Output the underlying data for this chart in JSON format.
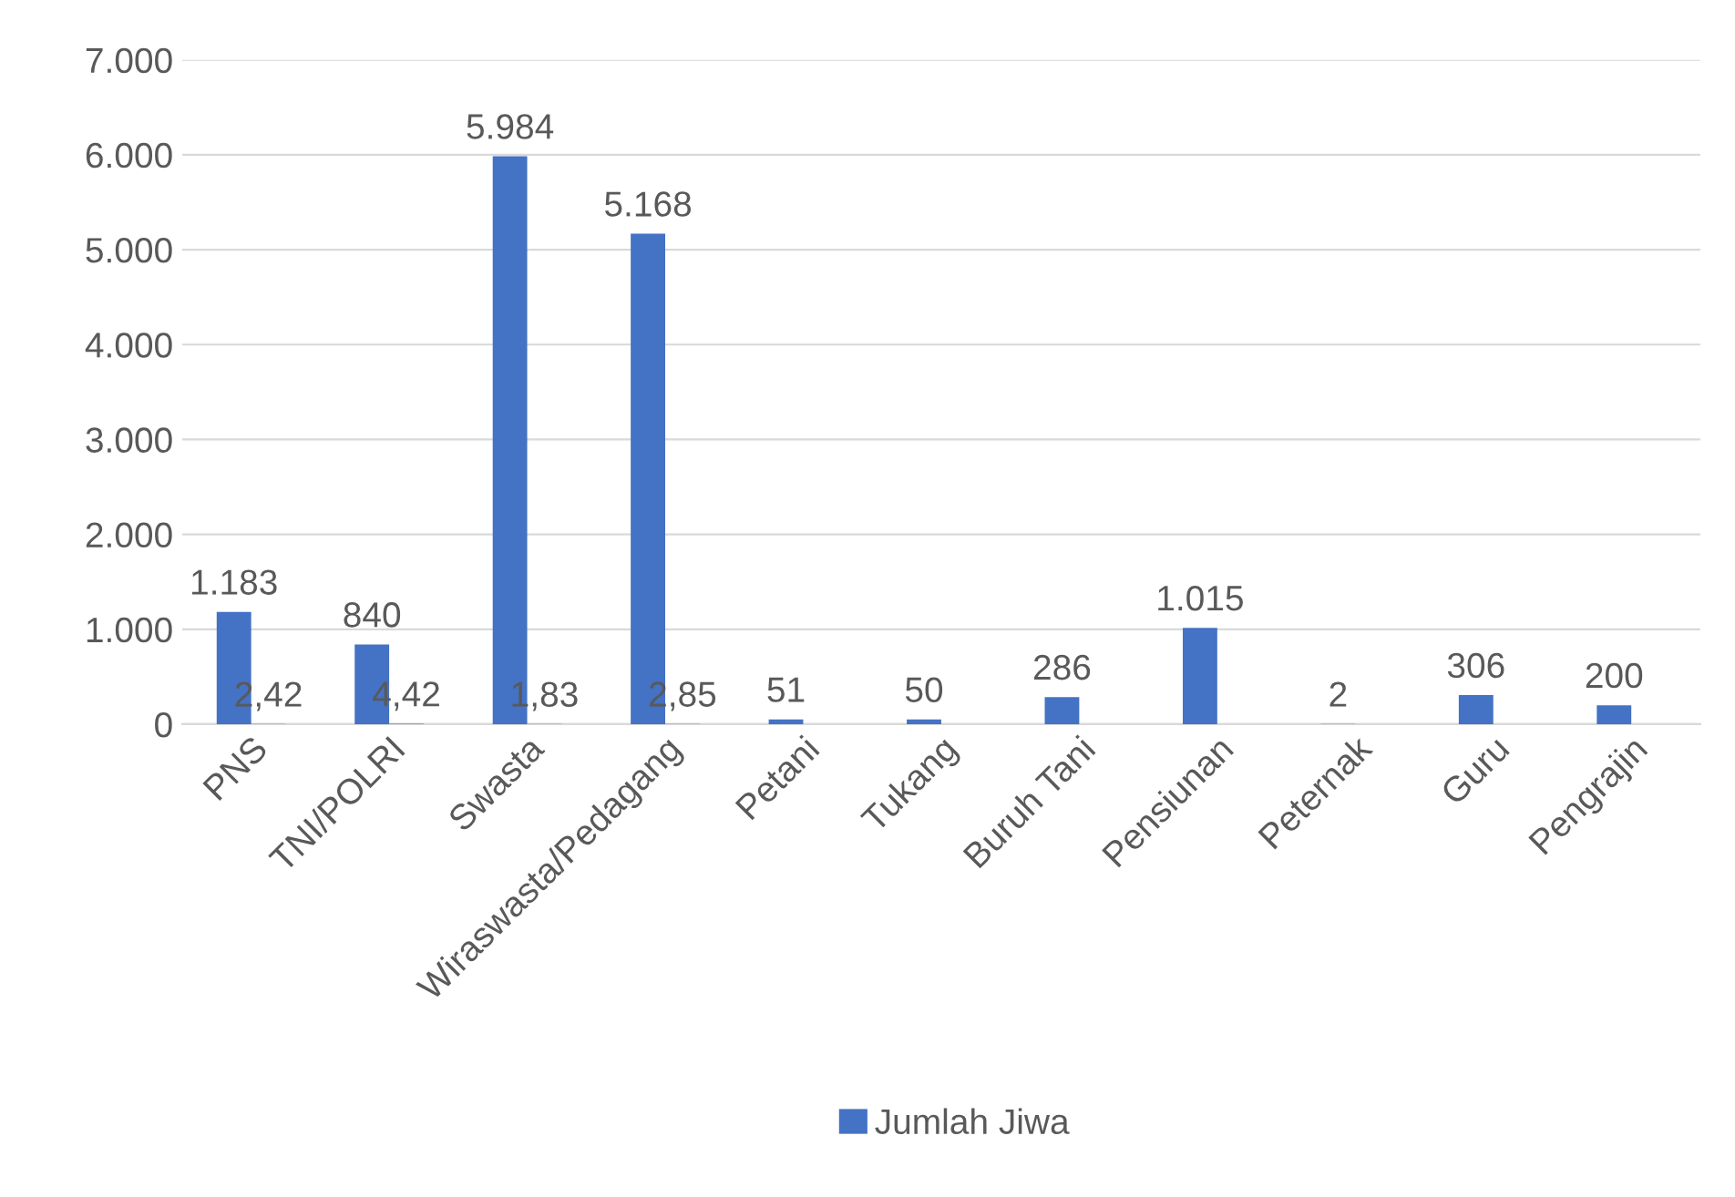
{
  "chart_data": {
    "type": "bar",
    "categories": [
      "PNS",
      "TNI/POLRI",
      "Swasta",
      "Wiraswasta/Pedagang",
      "Petani",
      "Tukang",
      "Buruh Tani",
      "Pensiunan",
      "Peternak",
      "Guru",
      "Pengrajin"
    ],
    "series": [
      {
        "name": "Jumlah Jiwa",
        "color": "#4472c4",
        "values": [
          1183,
          840,
          5984,
          5168,
          51,
          50,
          286,
          1015,
          2,
          306,
          200
        ],
        "value_labels": [
          "1.183",
          "840",
          "5.984",
          "5.168",
          "51",
          "50",
          "286",
          "1.015",
          "2",
          "306",
          "200"
        ]
      },
      {
        "color": "#4472c4",
        "values": [
          2.42,
          4.42,
          1.83,
          2.85,
          null,
          null,
          null,
          null,
          null,
          null,
          null
        ],
        "value_labels": [
          "2,42",
          "4,42",
          "1,83",
          "2,85",
          null,
          null,
          null,
          null,
          null,
          null,
          null
        ]
      }
    ],
    "ylim": [
      0,
      7000
    ],
    "yticks": [
      {
        "value": 0,
        "label": "0"
      },
      {
        "value": 1000,
        "label": "1.000"
      },
      {
        "value": 2000,
        "label": "2.000"
      },
      {
        "value": 3000,
        "label": "3.000"
      },
      {
        "value": 4000,
        "label": "4.000"
      },
      {
        "value": 5000,
        "label": "5.000"
      },
      {
        "value": 6000,
        "label": "6.000"
      },
      {
        "value": 7000,
        "label": "7.000"
      }
    ],
    "grid": "y",
    "legend": "bottom"
  }
}
